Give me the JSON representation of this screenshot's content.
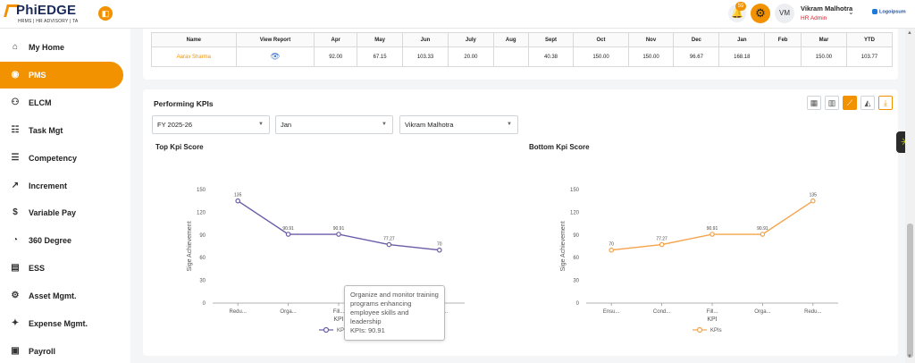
{
  "header": {
    "logo_main": "PhiEDGE",
    "logo_sub": "HRMS | HR ADVISORY | TA",
    "notification_count": "59",
    "avatar_initials": "VM",
    "user_name": "Vikram Malhotra",
    "user_role": "HR Admin",
    "brand_logo_text": "Logoipsum"
  },
  "sidebar": {
    "items": [
      {
        "label": "My Home",
        "icon": "home-icon",
        "active": false
      },
      {
        "label": "PMS",
        "icon": "pms-icon",
        "active": true
      },
      {
        "label": "ELCM",
        "icon": "people-icon",
        "active": false
      },
      {
        "label": "Task Mgt",
        "icon": "task-icon",
        "active": false
      },
      {
        "label": "Competency",
        "icon": "list-icon",
        "active": false
      },
      {
        "label": "Increment",
        "icon": "trend-icon",
        "active": false
      },
      {
        "label": "Variable Pay",
        "icon": "money-icon",
        "active": false
      },
      {
        "label": "360 Degree",
        "icon": "360-icon",
        "active": false
      },
      {
        "label": "ESS",
        "icon": "document-icon",
        "active": false
      },
      {
        "label": "Asset Mgmt.",
        "icon": "asset-icon",
        "active": false
      },
      {
        "label": "Expense Mgmt.",
        "icon": "expense-icon",
        "active": false
      },
      {
        "label": "Payroll",
        "icon": "payroll-icon",
        "active": false
      }
    ]
  },
  "report_table": {
    "headers": [
      "Name",
      "View Report",
      "Apr",
      "May",
      "Jun",
      "July",
      "Aug",
      "Sept",
      "Oct",
      "Nov",
      "Dec",
      "Jan",
      "Feb",
      "Mar",
      "YTD"
    ],
    "rows": [
      [
        "Aarav Sharma",
        "",
        "92.00",
        "67.15",
        "103.33",
        "20.00",
        "",
        "40.38",
        "150.00",
        "150.00",
        "96.67",
        "168.18",
        "",
        "150.00",
        "103.77"
      ]
    ]
  },
  "kpi_panel": {
    "title": "Performing KPIs",
    "filters": {
      "year": "FY 2025-26",
      "month": "Jan",
      "employee": "Vikram Malhotra"
    },
    "tooltip": {
      "text": "Organize and monitor training programs enhancing employee skills and leadership",
      "value": "KPIs: 90.91"
    }
  },
  "chart_data": [
    {
      "type": "line",
      "title": "Top Kpi Score",
      "xlabel": "KPI",
      "ylabel": "Sige Achievement",
      "categories": [
        "Redu...",
        "Orga...",
        "Fill...",
        "Orga...",
        "Ensu..."
      ],
      "series": [
        {
          "name": "KPIs",
          "values": [
            135,
            90.91,
            90.91,
            77.27,
            70
          ],
          "color": "#6c5ba7"
        }
      ],
      "ylim": [
        0,
        150
      ],
      "yticks": [
        0,
        30,
        60,
        90,
        120,
        150
      ],
      "legend": "bottom-center",
      "grid": false
    },
    {
      "type": "line",
      "title": "Bottom Kpi Score",
      "xlabel": "KPI",
      "ylabel": "Sige Achievement",
      "categories": [
        "Ensu...",
        "Cond...",
        "Fill...",
        "Orga...",
        "Redu..."
      ],
      "series": [
        {
          "name": "KPIs",
          "values": [
            70,
            77.27,
            90.91,
            90.91,
            135
          ],
          "color": "#f5a34a"
        }
      ],
      "ylim": [
        0,
        150
      ],
      "yticks": [
        0,
        30,
        60,
        90,
        120,
        150
      ],
      "legend": "bottom-center",
      "grid": false
    }
  ]
}
